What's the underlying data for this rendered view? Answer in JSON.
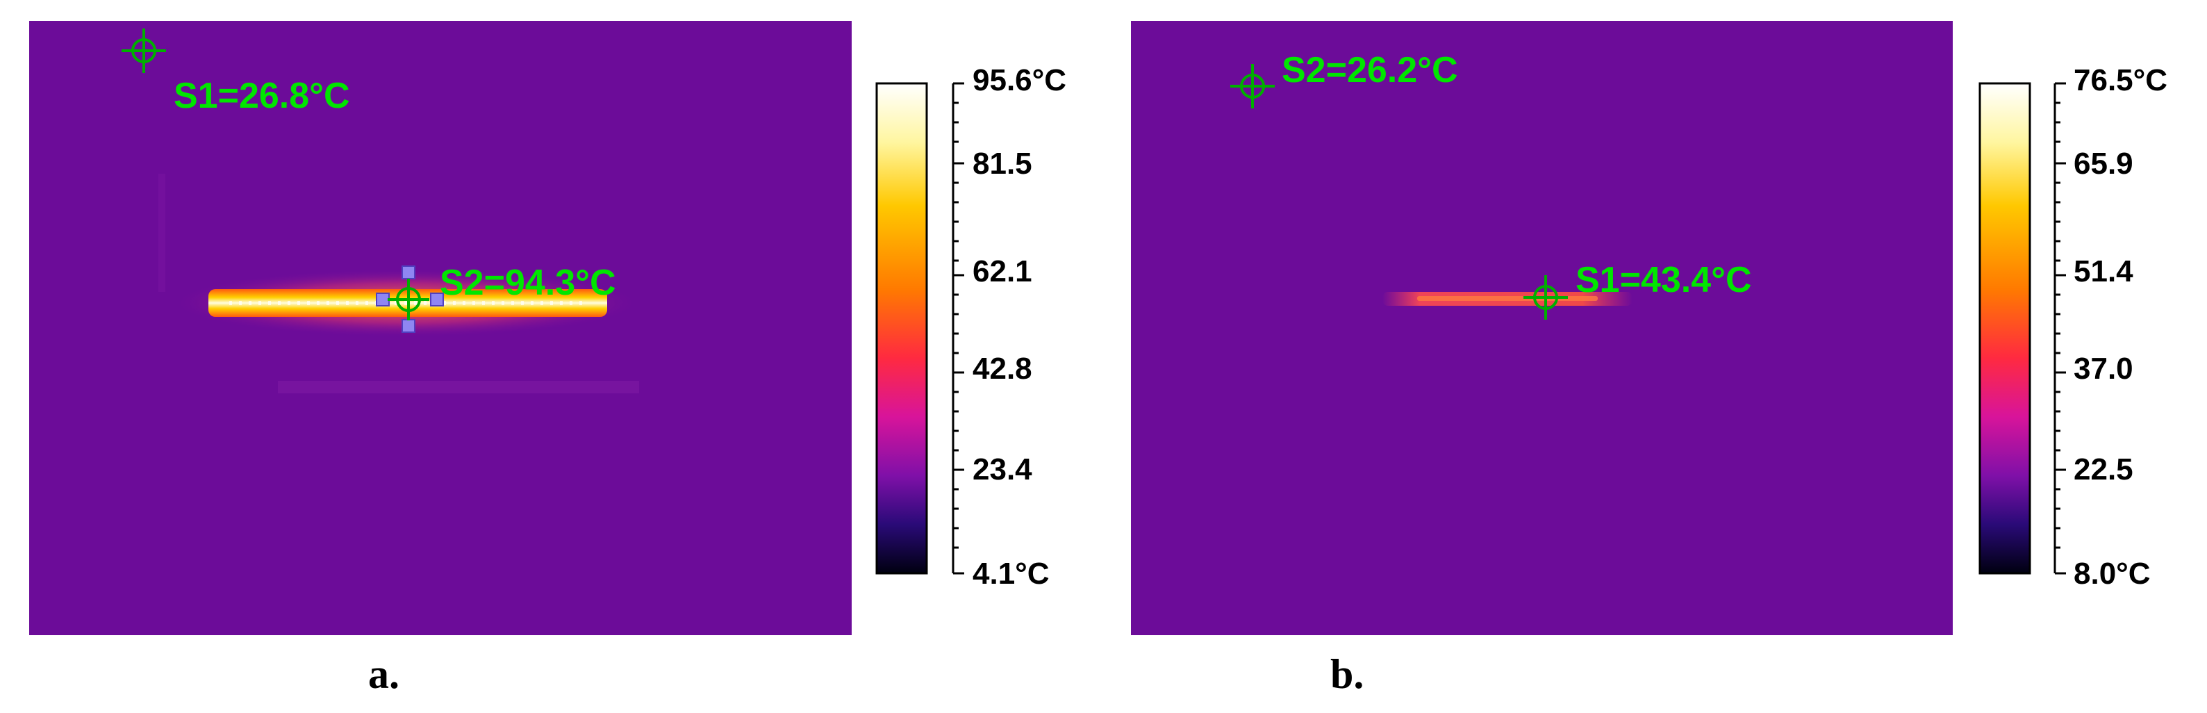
{
  "panels": [
    {
      "label": "a.",
      "markers": [
        {
          "id": "S1",
          "text": "S1=26.8°C"
        },
        {
          "id": "S2",
          "text": "S2=94.3°C"
        }
      ],
      "scale": {
        "max": "95.6°C",
        "ticks": [
          "81.5",
          "62.1",
          "42.8",
          "23.4"
        ],
        "min": "4.1°C"
      }
    },
    {
      "label": "b.",
      "markers": [
        {
          "id": "S2",
          "text": "S2=26.2°C"
        },
        {
          "id": "S1",
          "text": "S1=43.4°C"
        }
      ],
      "scale": {
        "max": "76.5°C",
        "ticks": [
          "65.9",
          "51.4",
          "37.0",
          "22.5"
        ],
        "min": "8.0°C"
      }
    }
  ],
  "colors": {
    "background": "#6c0c99",
    "marker": "#00e600",
    "handle": "#8f86f2"
  }
}
